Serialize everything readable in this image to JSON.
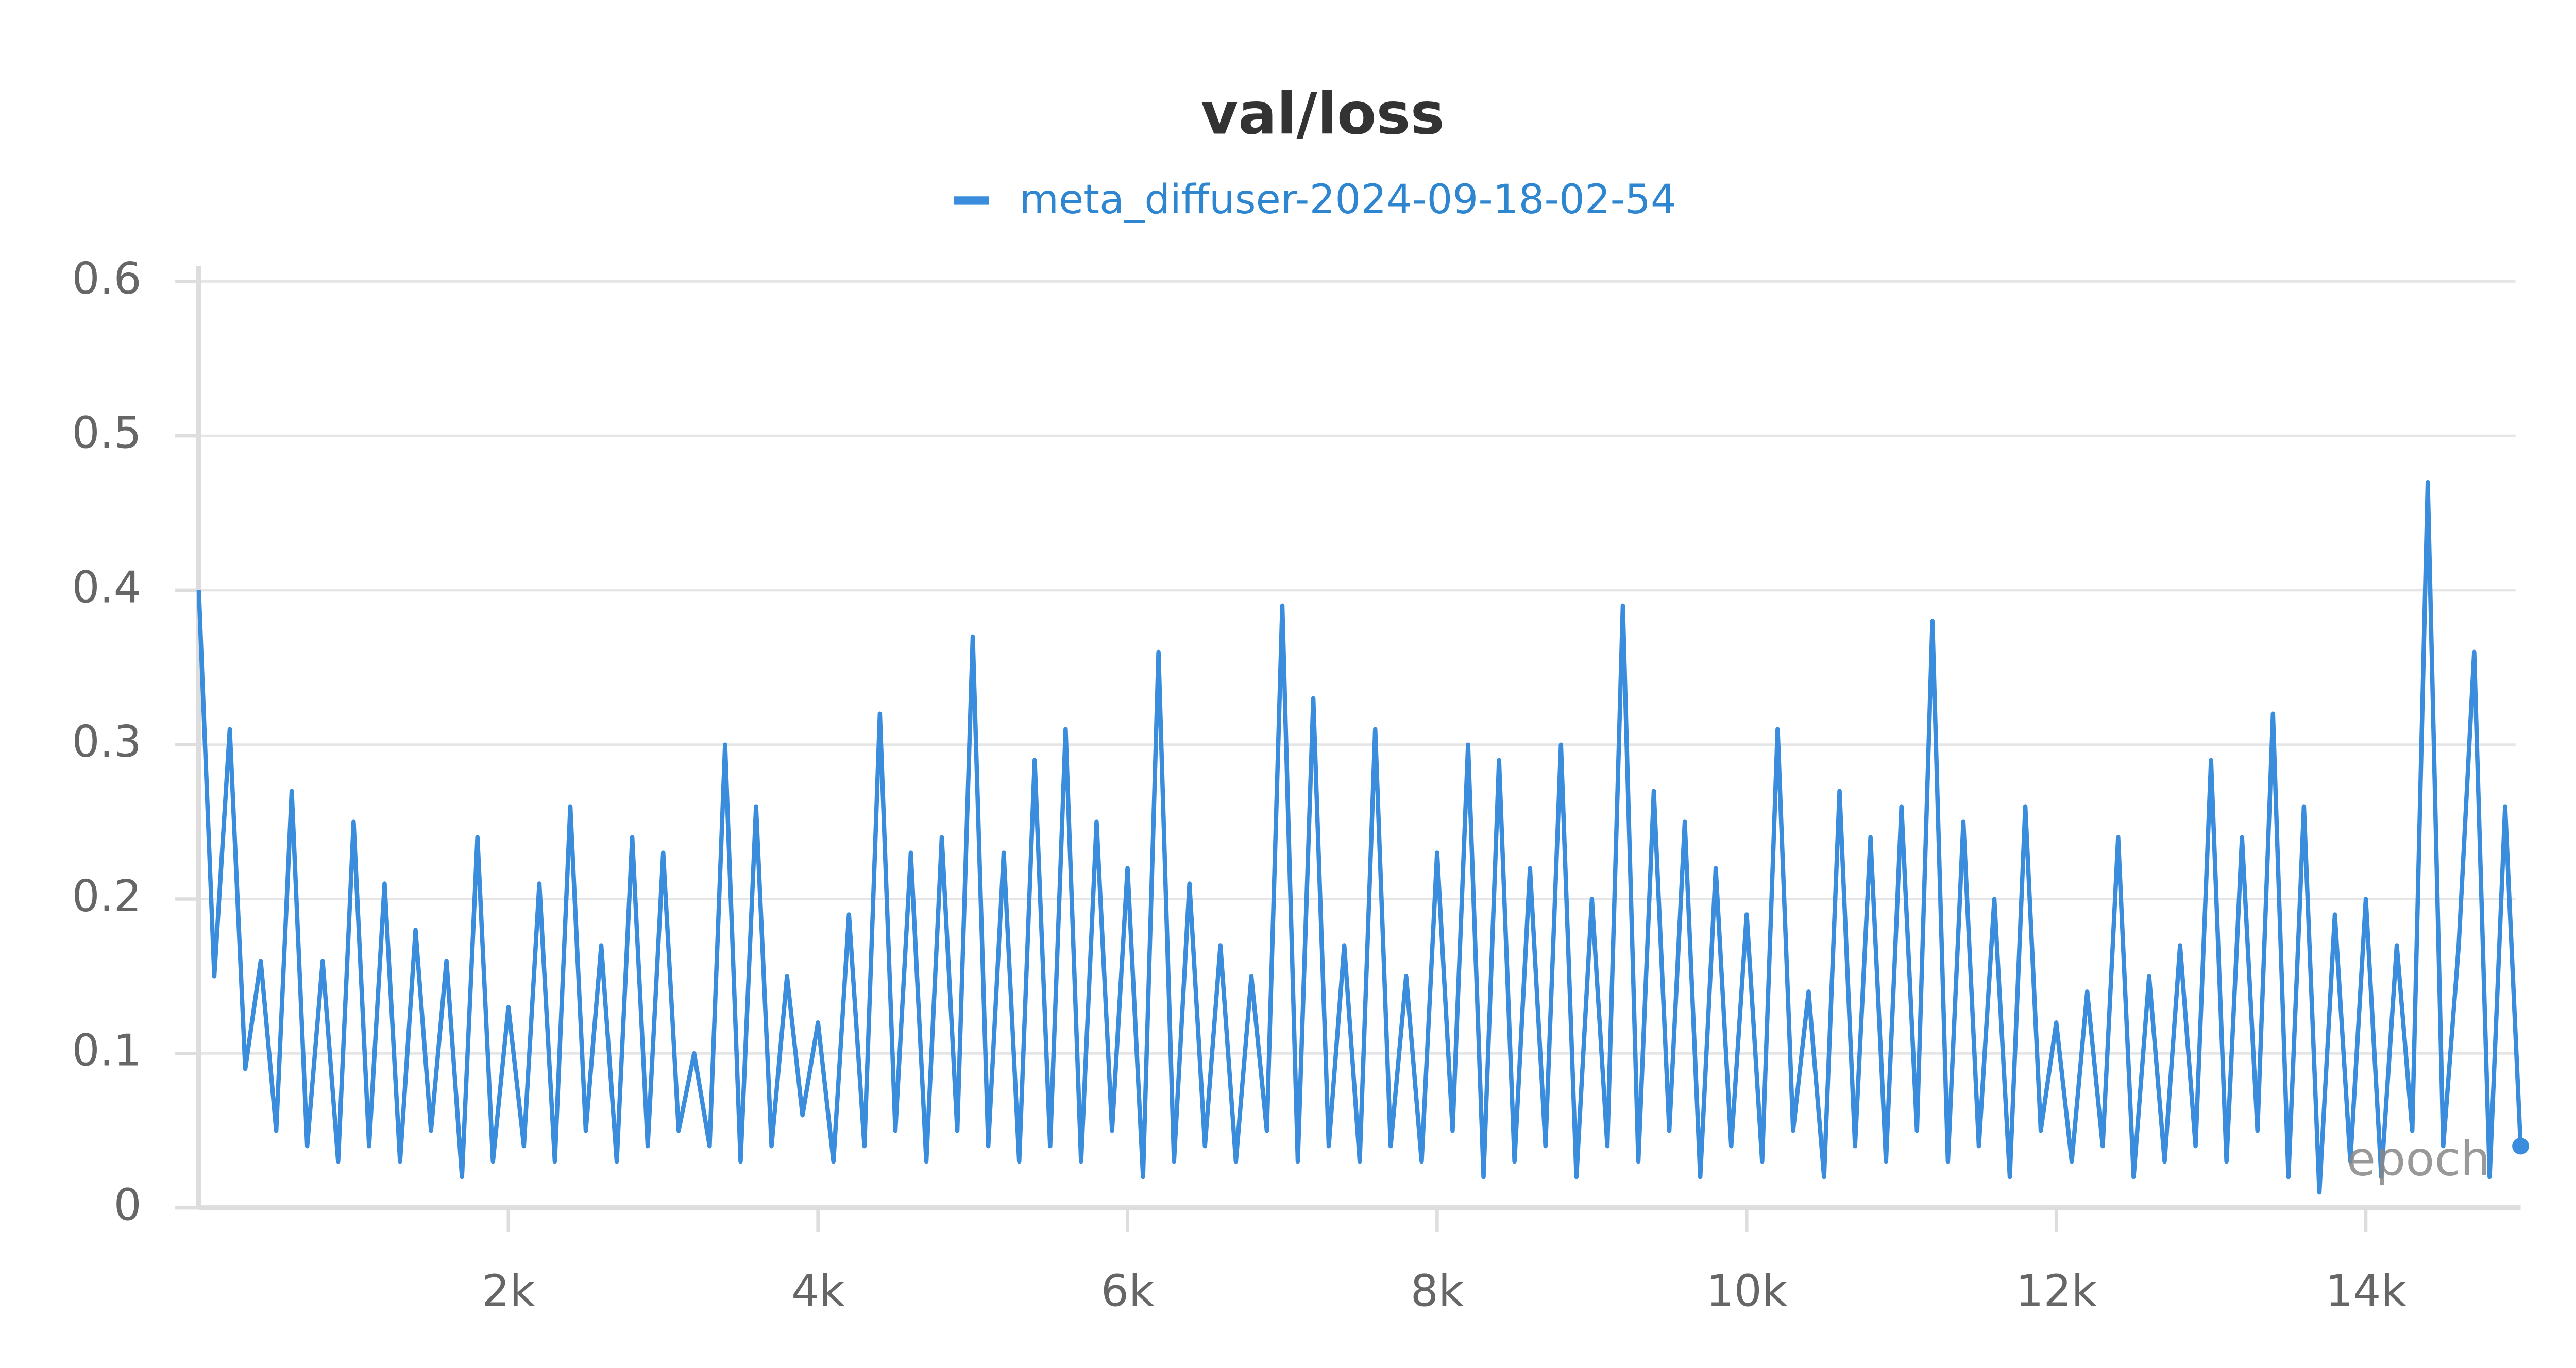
{
  "chart_data": {
    "type": "line",
    "title": "val/loss",
    "x_label": "epoch",
    "x": [
      0,
      100,
      200,
      300,
      400,
      500,
      600,
      700,
      800,
      900,
      1000,
      1100,
      1200,
      1300,
      1400,
      1500,
      1600,
      1700,
      1800,
      1900,
      2000,
      2100,
      2200,
      2300,
      2400,
      2500,
      2600,
      2700,
      2800,
      2900,
      3000,
      3100,
      3200,
      3300,
      3400,
      3500,
      3600,
      3700,
      3800,
      3900,
      4000,
      4100,
      4200,
      4300,
      4400,
      4500,
      4600,
      4700,
      4800,
      4900,
      5000,
      5100,
      5200,
      5300,
      5400,
      5500,
      5600,
      5700,
      5800,
      5900,
      6000,
      6100,
      6200,
      6300,
      6400,
      6500,
      6600,
      6700,
      6800,
      6900,
      7000,
      7100,
      7200,
      7300,
      7400,
      7500,
      7600,
      7700,
      7800,
      7900,
      8000,
      8100,
      8200,
      8300,
      8400,
      8500,
      8600,
      8700,
      8800,
      8900,
      9000,
      9100,
      9200,
      9300,
      9400,
      9500,
      9600,
      9700,
      9800,
      9900,
      10000,
      10100,
      10200,
      10300,
      10400,
      10500,
      10600,
      10700,
      10800,
      10900,
      11000,
      11100,
      11200,
      11300,
      11400,
      11500,
      11600,
      11700,
      11800,
      11900,
      12000,
      12100,
      12200,
      12300,
      12400,
      12500,
      12600,
      12700,
      12800,
      12900,
      13000,
      13100,
      13200,
      13300,
      13400,
      13500,
      13600,
      13700,
      13800,
      13900,
      14000,
      14100,
      14200,
      14300,
      14400,
      14500,
      14600,
      14700,
      14800,
      14900,
      15000
    ],
    "series": [
      {
        "name": "meta_diffuser-2024-09-18-02-54",
        "color": "#3a8ddc",
        "values": [
          0.4,
          0.15,
          0.31,
          0.09,
          0.16,
          0.05,
          0.27,
          0.04,
          0.16,
          0.03,
          0.25,
          0.04,
          0.21,
          0.03,
          0.18,
          0.05,
          0.16,
          0.02,
          0.24,
          0.03,
          0.13,
          0.04,
          0.21,
          0.03,
          0.26,
          0.05,
          0.17,
          0.03,
          0.24,
          0.04,
          0.23,
          0.05,
          0.1,
          0.04,
          0.3,
          0.03,
          0.26,
          0.04,
          0.15,
          0.06,
          0.12,
          0.03,
          0.19,
          0.04,
          0.32,
          0.05,
          0.23,
          0.03,
          0.24,
          0.05,
          0.37,
          0.04,
          0.23,
          0.03,
          0.29,
          0.04,
          0.31,
          0.03,
          0.25,
          0.05,
          0.22,
          0.02,
          0.36,
          0.03,
          0.21,
          0.04,
          0.17,
          0.03,
          0.15,
          0.05,
          0.39,
          0.03,
          0.33,
          0.04,
          0.17,
          0.03,
          0.31,
          0.04,
          0.15,
          0.03,
          0.23,
          0.05,
          0.3,
          0.02,
          0.29,
          0.03,
          0.22,
          0.04,
          0.3,
          0.02,
          0.2,
          0.04,
          0.39,
          0.03,
          0.27,
          0.05,
          0.25,
          0.02,
          0.22,
          0.04,
          0.19,
          0.03,
          0.31,
          0.05,
          0.14,
          0.02,
          0.27,
          0.04,
          0.24,
          0.03,
          0.26,
          0.05,
          0.38,
          0.03,
          0.25,
          0.04,
          0.2,
          0.02,
          0.26,
          0.05,
          0.12,
          0.03,
          0.14,
          0.04,
          0.24,
          0.02,
          0.15,
          0.03,
          0.17,
          0.04,
          0.29,
          0.03,
          0.24,
          0.05,
          0.32,
          0.02,
          0.26,
          0.01,
          0.19,
          0.03,
          0.2,
          0.02,
          0.17,
          0.05,
          0.47,
          0.04,
          0.17,
          0.36,
          0.02,
          0.26,
          0.04
        ]
      }
    ],
    "xlim": [
      0,
      15000
    ],
    "xticks": [
      {
        "value": 2000,
        "label": "2k"
      },
      {
        "value": 4000,
        "label": "4k"
      },
      {
        "value": 6000,
        "label": "6k"
      },
      {
        "value": 8000,
        "label": "8k"
      },
      {
        "value": 10000,
        "label": "10k"
      },
      {
        "value": 12000,
        "label": "12k"
      },
      {
        "value": 14000,
        "label": "14k"
      }
    ],
    "ylim": [
      0,
      0.6
    ],
    "yticks": [
      0,
      0.1,
      0.2,
      0.3,
      0.4,
      0.5,
      0.6
    ],
    "grid": true
  }
}
